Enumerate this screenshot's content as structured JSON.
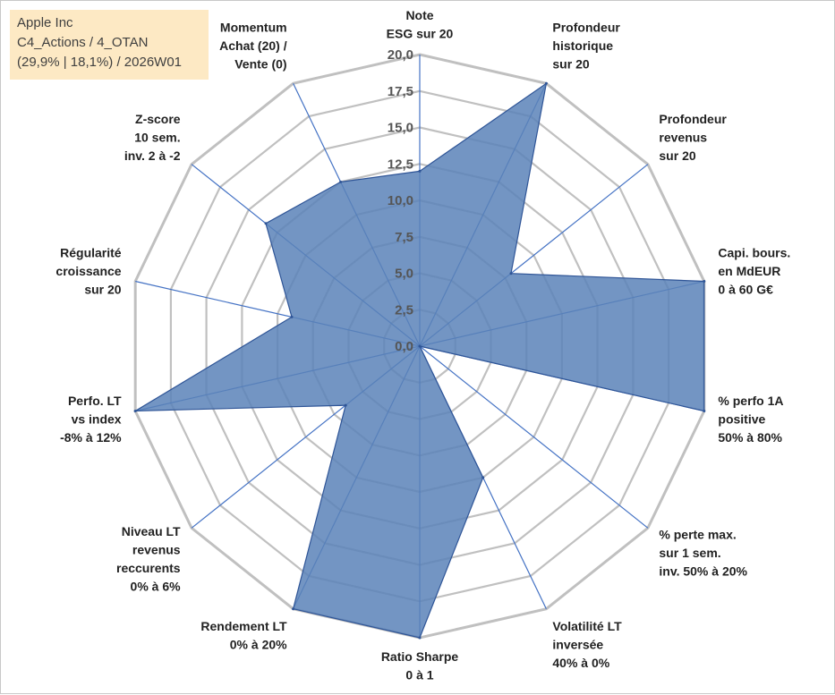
{
  "info_box": {
    "company": "Apple Inc",
    "line2": "C4_Actions / 4_OTAN",
    "line3": "(29,9% | 18,1%) / 2026W01"
  },
  "colors": {
    "fill": "#5a82b8",
    "stroke": "#2f5597",
    "grid": "#c0c0c0",
    "spoke": "#4472c4",
    "info_bg": "#fde9c4"
  },
  "chart_data": {
    "type": "radar",
    "title": "",
    "rmin": 0,
    "rmax": 20,
    "ticks": [
      "0,0",
      "2,5",
      "5,0",
      "7,5",
      "10,0",
      "12,5",
      "15,0",
      "17,5",
      "20,0"
    ],
    "tick_values": [
      0,
      2.5,
      5,
      7.5,
      10,
      12.5,
      15,
      17.5,
      20
    ],
    "axes": [
      {
        "lines": [
          "Note",
          "ESG sur 20"
        ]
      },
      {
        "lines": [
          "Profondeur",
          "historique",
          "sur 20"
        ]
      },
      {
        "lines": [
          "Profondeur",
          "revenus",
          "sur 20"
        ]
      },
      {
        "lines": [
          "Capi. bours.",
          "en MdEUR",
          "0 à 60 G€"
        ]
      },
      {
        "lines": [
          "% perfo 1A",
          "positive",
          "50% à 80%"
        ]
      },
      {
        "lines": [
          "% perte max.",
          "sur 1 sem.",
          "inv. 50% à 20%"
        ]
      },
      {
        "lines": [
          "Volatilité LT",
          "inversée",
          "40% à 0%"
        ]
      },
      {
        "lines": [
          "Ratio Sharpe",
          "0 à 1"
        ]
      },
      {
        "lines": [
          "Rendement LT",
          "0% à 20%"
        ]
      },
      {
        "lines": [
          "Niveau LT",
          "revenus",
          "reccurents",
          "0% à 6%"
        ]
      },
      {
        "lines": [
          "Perfo. LT",
          "vs index",
          "-8% à 12%"
        ]
      },
      {
        "lines": [
          "Régularité",
          "croissance",
          "sur 20"
        ]
      },
      {
        "lines": [
          "Z-score",
          "10 sem.",
          "inv. 2 à -2"
        ]
      },
      {
        "lines": [
          "Momentum",
          "Achat (20) /",
          "Vente (0)"
        ]
      }
    ],
    "series": [
      {
        "name": "Apple Inc",
        "values": [
          12.0,
          20.0,
          8.0,
          20.0,
          20.0,
          0.0,
          10.0,
          20.0,
          20.0,
          6.5,
          20.0,
          9.0,
          13.5,
          12.5
        ]
      }
    ]
  }
}
